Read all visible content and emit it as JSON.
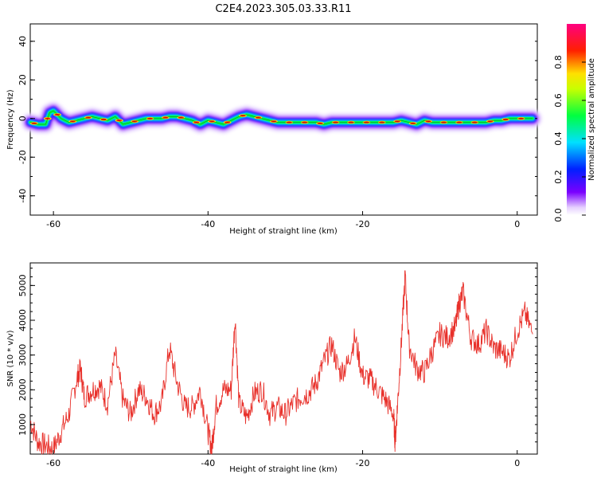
{
  "title": "C2E4.2023.305.03.33.R11",
  "chart_data": [
    {
      "type": "heatmap",
      "xlabel": "Height of straight line (km)",
      "ylabel": "Frequency (Hz)",
      "xlim": [
        -63,
        2.6
      ],
      "ylim": [
        -50,
        49
      ],
      "x_ticks": [
        "-60",
        "-40",
        "-20",
        "0"
      ],
      "y_ticks": [
        "-40",
        "-20",
        "0",
        "20",
        "40"
      ],
      "colorbar": {
        "label": "Normalized spectral amplitude",
        "range": [
          0,
          1
        ],
        "ticks": [
          "0.0",
          "0.2",
          "0.4",
          "0.6",
          "0.8"
        ],
        "colormap": "rainbow (white→violet→blue→cyan→green→yellow→red→magenta)"
      },
      "ridge": {
        "description": "frequency ridge (Hz) vs height (km)",
        "x": [
          -63,
          -62,
          -61,
          -60.5,
          -60,
          -59,
          -58,
          -57,
          -56,
          -55,
          -54,
          -53,
          -52,
          -51,
          -50,
          -49,
          -48,
          -47,
          -46,
          -45,
          -44,
          -43,
          -42,
          -41,
          -40,
          -39,
          -38,
          -37,
          -36,
          -35,
          -34,
          -33,
          -32,
          -31,
          -30,
          -29,
          -28,
          -27,
          -26,
          -25,
          -24,
          -23,
          -22,
          -21,
          -20,
          -19,
          -18,
          -17,
          -16,
          -15,
          -14,
          -13,
          -12,
          -11,
          -10,
          -9,
          -8,
          -7,
          -6,
          -5,
          -4,
          -3,
          -2,
          -1,
          0,
          1,
          2
        ],
        "y": [
          -2,
          -3,
          -3,
          3,
          4,
          0,
          -2,
          -1,
          0,
          1,
          0,
          -1,
          1,
          -3,
          -2,
          -1,
          0,
          0,
          0,
          1,
          1,
          0,
          -1,
          -3,
          -1,
          -2,
          -3,
          -1,
          1,
          2,
          1,
          0,
          -1,
          -2,
          -2,
          -2,
          -2,
          -2,
          -2,
          -3,
          -2,
          -2,
          -2,
          -2,
          -2,
          -2,
          -2,
          -2,
          -2,
          -1,
          -2,
          -3,
          -1,
          -2,
          -2,
          -2,
          -2,
          -2,
          -2,
          -2,
          -2,
          -1,
          -1,
          0,
          0,
          0,
          0
        ]
      }
    },
    {
      "type": "line",
      "xlabel": "Height of straight line (km)",
      "ylabel": "SNR (10 * v/v)",
      "xlim": [
        -63,
        2.6
      ],
      "ylim": [
        150,
        5650
      ],
      "x_ticks": [
        "-60",
        "-40",
        "-20",
        "0"
      ],
      "y_ticks": [
        "1000",
        "2000",
        "3000",
        "4000",
        "5000"
      ],
      "color": "#e8302a",
      "series": [
        {
          "x": [
            -63,
            -62,
            -61,
            -60,
            -59,
            -58,
            -57,
            -56.5,
            -56,
            -55,
            -54,
            -53,
            -52,
            -51,
            -50,
            -49,
            -48,
            -47,
            -46,
            -45,
            -44,
            -43,
            -42,
            -41,
            -40,
            -39.5,
            -39,
            -38,
            -37,
            -36.5,
            -36,
            -35,
            -34,
            -33,
            -32,
            -31,
            -30,
            -29,
            -28,
            -27,
            -26,
            -25,
            -24,
            -23,
            -22,
            -21,
            -20,
            -19,
            -18,
            -17,
            -16,
            -15.8,
            -15.5,
            -15,
            -14.5,
            -14,
            -13,
            -12,
            -11,
            -10,
            -9,
            -8,
            -7.5,
            -7,
            -6,
            -5,
            -4,
            -3,
            -2,
            -1,
            0,
            1,
            2
          ],
          "y": [
            1100,
            500,
            400,
            300,
            800,
            1300,
            2300,
            2600,
            1800,
            2000,
            2100,
            1600,
            3000,
            1700,
            1300,
            2000,
            1800,
            1300,
            1600,
            3200,
            2200,
            1500,
            1500,
            2000,
            800,
            300,
            1500,
            2000,
            2000,
            4100,
            1600,
            1200,
            1900,
            2000,
            1300,
            1500,
            1300,
            1600,
            1800,
            1900,
            2200,
            2800,
            3300,
            2500,
            2700,
            3500,
            2400,
            2300,
            2000,
            1700,
            1300,
            500,
            1500,
            3300,
            5300,
            3300,
            2600,
            2500,
            3100,
            3600,
            3500,
            3800,
            4500,
            4800,
            3500,
            3300,
            3700,
            3200,
            3100,
            2900,
            3700,
            4200,
            3600
          ]
        }
      ]
    }
  ]
}
